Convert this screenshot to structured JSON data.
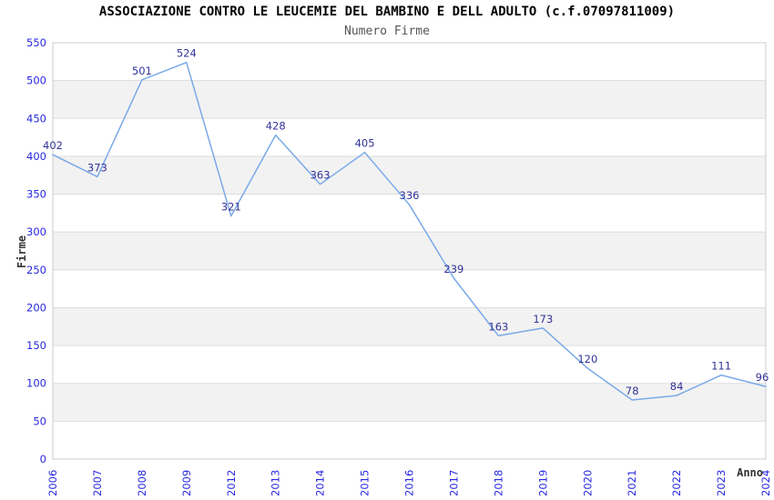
{
  "title": "ASSOCIAZIONE CONTRO LE LEUCEMIE DEL BAMBINO E DELL ADULTO (c.f.07097811009)",
  "subtitle": "Numero Firme",
  "chart_data": {
    "type": "line",
    "categories": [
      "2006",
      "2007",
      "2008",
      "2009",
      "2012",
      "2013",
      "2014",
      "2015",
      "2016",
      "2017",
      "2018",
      "2019",
      "2020",
      "2021",
      "2022",
      "2023",
      "2024"
    ],
    "values": [
      402,
      373,
      501,
      524,
      321,
      428,
      363,
      405,
      336,
      239,
      163,
      173,
      120,
      78,
      84,
      111,
      96
    ],
    "title": "ASSOCIAZIONE CONTRO LE LEUCEMIE DEL BAMBINO E DELL ADULTO (c.f.07097811009)",
    "subtitle": "Numero Firme",
    "xlabel": "Anno",
    "ylabel": "Firme",
    "ylim": [
      0,
      550
    ],
    "y_tick_step": 50,
    "grid": "horizontal, alternating shaded bands",
    "legend": "none",
    "data_labels": true,
    "colors": {
      "line": "#79a9e8",
      "data_label": "#333399",
      "tick_label": "#2727e0",
      "axis_title": "#333333",
      "title": "#000000",
      "subtitle": "#555555",
      "band": "#f2f2f2",
      "gridline": "#dddddd",
      "border": "#cccccc",
      "background": "#ffffff"
    }
  }
}
